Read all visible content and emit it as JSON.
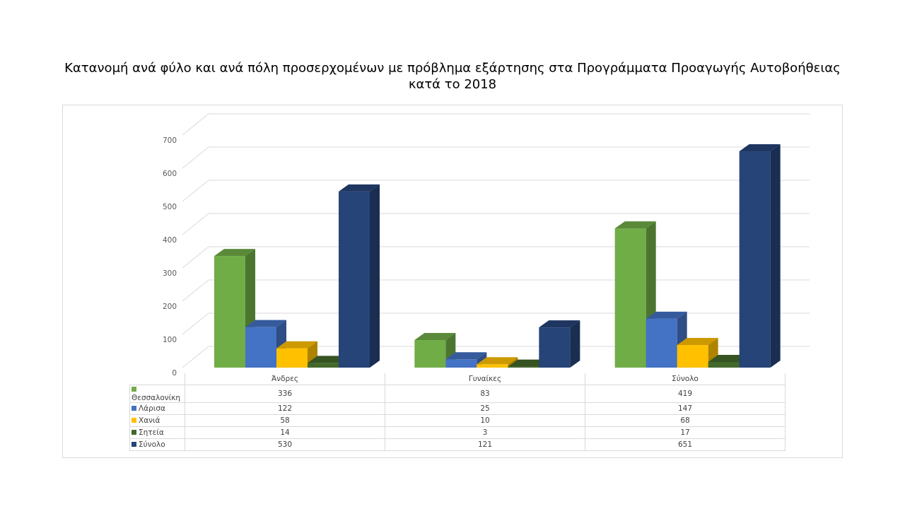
{
  "chart_data": {
    "type": "bar",
    "title": "Κατανομή ανά φύλο και ανά πόλη προσερχομένων με πρόβλημα εξάρτησης στα Προγράμματα Προαγωγής Αυτοβοήθειας κατά το 2018",
    "categories": [
      "Άνδρες",
      "Γυναίκες",
      "Σύνολο"
    ],
    "series": [
      {
        "name": "Θεσσαλονίκη",
        "values": [
          336,
          83,
          419
        ],
        "color": "#70ad47"
      },
      {
        "name": "Λάρισα",
        "values": [
          122,
          25,
          147
        ],
        "color": "#4472c4"
      },
      {
        "name": "Χανιά",
        "values": [
          58,
          10,
          68
        ],
        "color": "#ffc000"
      },
      {
        "name": "Σητεία",
        "values": [
          14,
          3,
          17
        ],
        "color": "#43682b"
      },
      {
        "name": "Σύνολο",
        "values": [
          530,
          121,
          651
        ],
        "color": "#264478"
      }
    ],
    "ylim": [
      0,
      700
    ],
    "yticks": [
      "0",
      "100",
      "200",
      "300",
      "400",
      "500",
      "600",
      "700"
    ],
    "grid": true,
    "legend": "data-table"
  }
}
